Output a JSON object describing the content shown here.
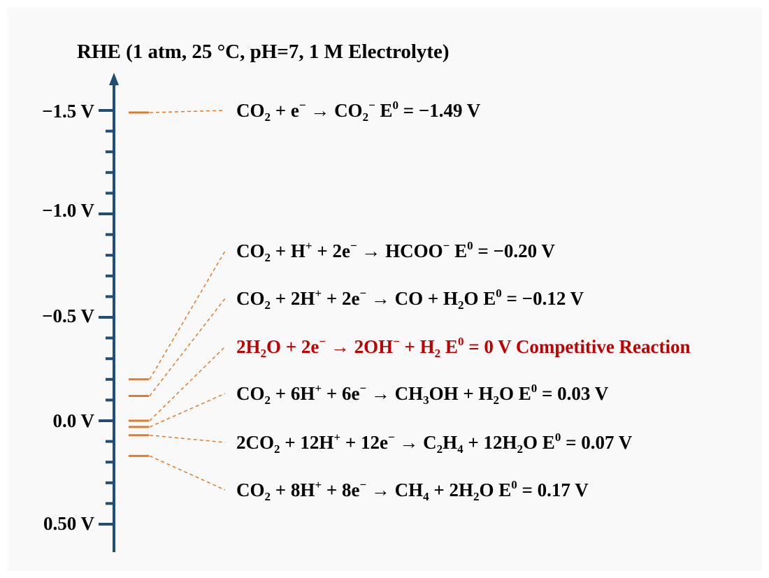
{
  "title": "RHE (1 atm, 25 °C, pH=7, 1 M Electrolyte)",
  "axis": {
    "labels": [
      "−1.5 V",
      "−1.0 V",
      "−0.5 V",
      "0.0 V",
      "0.50 V"
    ],
    "axis_color": "#1f4e79",
    "level_color": "#e07b2a",
    "highlight_color": "#c00000"
  },
  "reactions": [
    {
      "parts": [
        [
          "t",
          "CO"
        ],
        [
          "sub",
          "2"
        ],
        [
          "t",
          " + e"
        ],
        [
          "sup",
          "−"
        ],
        [
          "t",
          " → CO"
        ],
        [
          "sub",
          "2"
        ],
        [
          "sup",
          "−"
        ],
        [
          "t",
          "    E"
        ],
        [
          "sup",
          "0"
        ],
        [
          "t",
          " = −1.49 V"
        ]
      ],
      "potential": -1.49,
      "highlight": false
    },
    {
      "parts": [
        [
          "t",
          "CO"
        ],
        [
          "sub",
          "2"
        ],
        [
          "t",
          " + H"
        ],
        [
          "sup",
          "+"
        ],
        [
          "t",
          " + 2e"
        ],
        [
          "sup",
          "−"
        ],
        [
          "t",
          " → HCOO"
        ],
        [
          "sup",
          "−"
        ],
        [
          "t",
          "    E"
        ],
        [
          "sup",
          "0"
        ],
        [
          "t",
          " = −0.20 V"
        ]
      ],
      "potential": -0.2,
      "highlight": false
    },
    {
      "parts": [
        [
          "t",
          "CO"
        ],
        [
          "sub",
          "2"
        ],
        [
          "t",
          " + 2H"
        ],
        [
          "sup",
          "+"
        ],
        [
          "t",
          " + 2e"
        ],
        [
          "sup",
          "−"
        ],
        [
          "t",
          " → CO + H"
        ],
        [
          "sub",
          "2"
        ],
        [
          "t",
          "O   E"
        ],
        [
          "sup",
          "0"
        ],
        [
          "t",
          " = −0.12 V"
        ]
      ],
      "potential": -0.12,
      "highlight": false
    },
    {
      "parts": [
        [
          "t",
          "2H"
        ],
        [
          "sub",
          "2"
        ],
        [
          "t",
          "O + 2e"
        ],
        [
          "sup",
          "−"
        ],
        [
          "t",
          " → 2OH"
        ],
        [
          "sup",
          "−"
        ],
        [
          "t",
          " + H"
        ],
        [
          "sub",
          "2"
        ],
        [
          "t",
          "   E"
        ],
        [
          "sup",
          "0"
        ],
        [
          "t",
          " = 0 V Competitive Reaction"
        ]
      ],
      "potential": 0.0,
      "highlight": true
    },
    {
      "parts": [
        [
          "t",
          "CO"
        ],
        [
          "sub",
          "2"
        ],
        [
          "t",
          " + 6H"
        ],
        [
          "sup",
          "+"
        ],
        [
          "t",
          " + 6e"
        ],
        [
          "sup",
          "−"
        ],
        [
          "t",
          " → CH"
        ],
        [
          "sub",
          "3"
        ],
        [
          "t",
          "OH + H"
        ],
        [
          "sub",
          "2"
        ],
        [
          "t",
          "O   E"
        ],
        [
          "sup",
          "0"
        ],
        [
          "t",
          " = 0.03 V"
        ]
      ],
      "potential": 0.03,
      "highlight": false
    },
    {
      "parts": [
        [
          "t",
          "2CO"
        ],
        [
          "sub",
          "2"
        ],
        [
          "t",
          " + 12H"
        ],
        [
          "sup",
          "+"
        ],
        [
          "t",
          " + 12e"
        ],
        [
          "sup",
          "−"
        ],
        [
          "t",
          " → C"
        ],
        [
          "sub",
          "2"
        ],
        [
          "t",
          "H"
        ],
        [
          "sub",
          "4"
        ],
        [
          "t",
          " + 12H"
        ],
        [
          "sub",
          "2"
        ],
        [
          "t",
          "O   E"
        ],
        [
          "sup",
          "0"
        ],
        [
          "t",
          " = 0.07 V"
        ]
      ],
      "potential": 0.07,
      "highlight": false
    },
    {
      "parts": [
        [
          "t",
          "CO"
        ],
        [
          "sub",
          "2"
        ],
        [
          "t",
          " + 8H"
        ],
        [
          "sup",
          "+"
        ],
        [
          "t",
          " + 8e"
        ],
        [
          "sup",
          "−"
        ],
        [
          "t",
          " → CH"
        ],
        [
          "sub",
          "4"
        ],
        [
          "t",
          " + 2H"
        ],
        [
          "sub",
          "2"
        ],
        [
          "t",
          "O   E"
        ],
        [
          "sup",
          "0"
        ],
        [
          "t",
          " = 0.17 V"
        ]
      ],
      "potential": 0.17,
      "highlight": false
    }
  ]
}
